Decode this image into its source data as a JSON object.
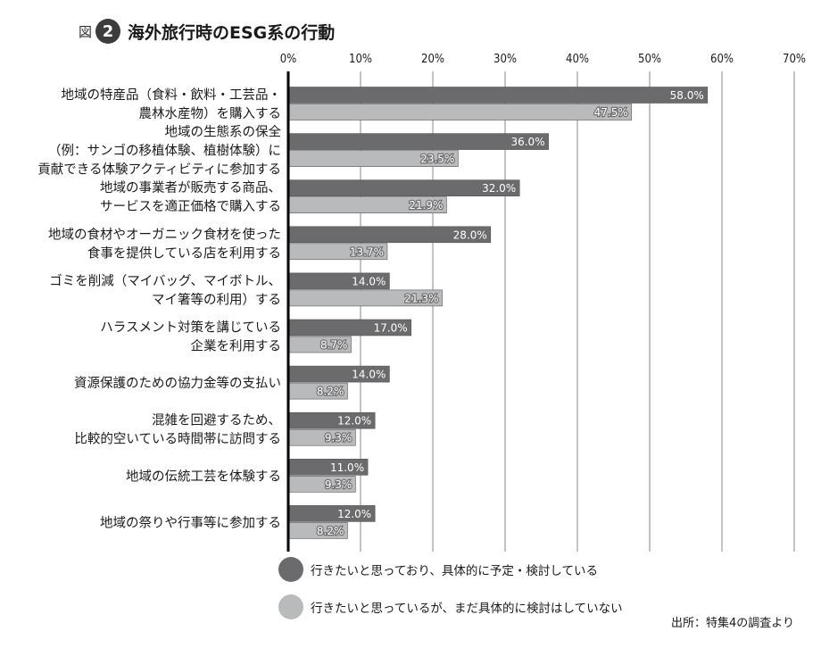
{
  "header": {
    "fig_label": "図",
    "fig_number": "2",
    "title": "海外旅行時のESG系の行動"
  },
  "source": "出所：特集4の調査より",
  "colors": {
    "dark": "#6b6b6d",
    "light": "#b9babc",
    "axis": "#000000",
    "grid": "#8a8a8a"
  },
  "chart_data": {
    "type": "bar",
    "orientation": "horizontal",
    "xlim": [
      0,
      70
    ],
    "ticks": [
      "0%",
      "10%",
      "20%",
      "30%",
      "40%",
      "50%",
      "60%",
      "70%"
    ],
    "categories": [
      [
        "地域の特産品（食料・飲料・工芸品・",
        "農林水産物）を購入する"
      ],
      [
        "地域の生態系の保全",
        "（例：サンゴの移植体験、植樹体験）に",
        "貢献できる体験アクティビティに参加する"
      ],
      [
        "地域の事業者が販売する商品、",
        "サービスを適正価格で購入する"
      ],
      [
        "地域の食材やオーガニック食材を使った",
        "食事を提供している店を利用する"
      ],
      [
        "ゴミを削減（マイバッグ、マイボトル、",
        "マイ箸等の利用）する"
      ],
      [
        "ハラスメント対策を講じている",
        "企業を利用する"
      ],
      [
        "資源保護のための協力金等の支払い"
      ],
      [
        "混雑を回避するため、",
        "比較的空いている時間帯に訪問する"
      ],
      [
        "地域の伝統工芸を体験する"
      ],
      [
        "地域の祭りや行事等に参加する"
      ]
    ],
    "series": [
      {
        "name": "行きたいと思っており、具体的に予定・検討している",
        "values": [
          58.0,
          36.0,
          32.0,
          28.0,
          14.0,
          17.0,
          14.0,
          12.0,
          11.0,
          12.0
        ],
        "labels": [
          "58.0%",
          "36.0%",
          "32.0%",
          "28.0%",
          "14.0%",
          "17.0%",
          "14.0%",
          "12.0%",
          "11.0%",
          "12.0%"
        ]
      },
      {
        "name": "行きたいと思っているが、まだ具体的に検討はしていない",
        "values": [
          47.5,
          23.5,
          21.9,
          13.7,
          21.3,
          8.7,
          8.2,
          9.3,
          9.3,
          8.2
        ],
        "labels": [
          "47.5%",
          "23.5%",
          "21.9%",
          "13.7%",
          "21.3%",
          "8.7%",
          "8.2%",
          "9.3%",
          "9.3%",
          "8.2%"
        ]
      }
    ],
    "grid": true,
    "legend_position": "bottom-left"
  }
}
